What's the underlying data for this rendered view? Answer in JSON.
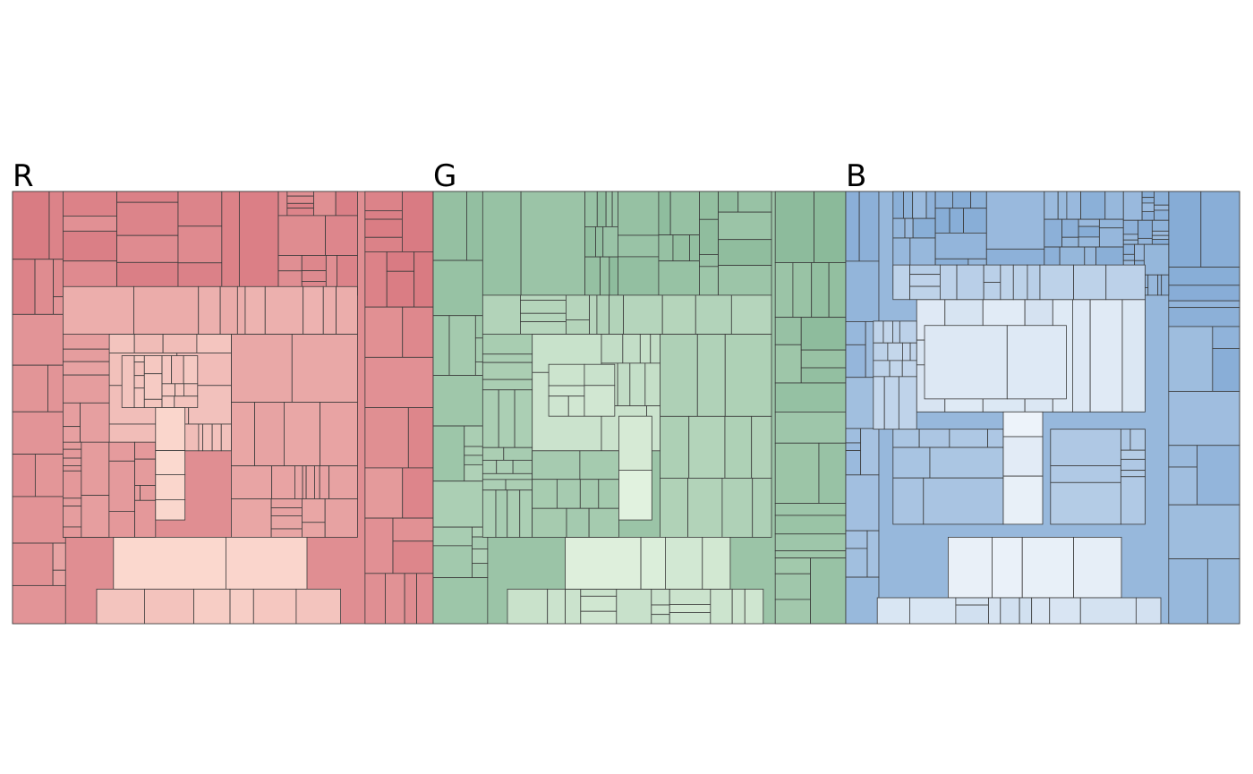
{
  "chart_data": [
    {
      "type": "treemap",
      "title": "R",
      "colors": {
        "dark": "#d87880",
        "light": "#ffe4d8"
      },
      "outer_columns": [
        {
          "weight": 1.05,
          "rows": [
            {
              "weight": 1.6,
              "cells": [
                1.8,
                0.8
              ]
            },
            {
              "weight": 1.3,
              "cells": [
                1.1,
                0.9,
                0.6
              ]
            },
            {
              "weight": 1.2,
              "cells": [
                1
              ]
            },
            {
              "weight": 1.1,
              "cells": [
                1.4,
                0.7
              ]
            },
            {
              "weight": 1.0,
              "cells": [
                1
              ]
            },
            {
              "weight": 1.0,
              "cells": [
                0.9,
                1.2
              ]
            },
            {
              "weight": 1.1,
              "cells": [
                1
              ]
            },
            {
              "weight": 1.0,
              "cells": [
                1.6,
                0.5
              ]
            },
            {
              "weight": 0.9,
              "cells": [
                1
              ]
            }
          ]
        },
        {
          "weight": 0.9,
          "rows": [
            {
              "weight": 1.2,
              "cells": [
                1.2,
                1.0
              ]
            },
            {
              "weight": 1.1,
              "cells": [
                0.8,
                1.0,
                0.7
              ]
            },
            {
              "weight": 1.0,
              "cells": [
                1.1,
                0.9
              ]
            },
            {
              "weight": 1.0,
              "cells": [
                1
              ]
            },
            {
              "weight": 1.2,
              "cells": [
                1.4,
                0.8
              ]
            },
            {
              "weight": 1.0,
              "cells": [
                1
              ]
            },
            {
              "weight": 1.1,
              "cells": [
                0.9,
                1.3
              ]
            },
            {
              "weight": 1.0,
              "cells": [
                1
              ]
            }
          ]
        }
      ],
      "center_blocks": [
        {
          "x0": 0.23,
          "y0": 0.33,
          "x1": 0.52,
          "y1": 0.6,
          "t": 0.72
        },
        {
          "x0": 0.26,
          "y0": 0.38,
          "x1": 0.44,
          "y1": 0.5,
          "t": 0.78
        },
        {
          "x0": 0.34,
          "y0": 0.5,
          "x1": 0.41,
          "y1": 0.76,
          "t": 0.95
        },
        {
          "x0": 0.24,
          "y0": 0.8,
          "x1": 0.7,
          "y1": 0.92,
          "t": 0.9
        },
        {
          "x0": 0.2,
          "y0": 0.92,
          "x1": 0.78,
          "y1": 1.0,
          "t": 0.8
        },
        {
          "x0": 0.12,
          "y0": 0.22,
          "x1": 0.82,
          "y1": 0.33,
          "t": 0.55
        },
        {
          "x0": 0.52,
          "y0": 0.33,
          "x1": 0.82,
          "y1": 0.8,
          "t": 0.45
        },
        {
          "x0": 0.12,
          "y0": 0.33,
          "x1": 0.23,
          "y1": 0.8,
          "t": 0.4
        },
        {
          "x0": 0.12,
          "y0": 0.58,
          "x1": 0.34,
          "y1": 0.8,
          "t": 0.35
        }
      ]
    },
    {
      "type": "treemap",
      "title": "G",
      "colors": {
        "dark": "#88b898",
        "light": "#e8f6e4"
      },
      "outer_columns": [
        {
          "weight": 1.1,
          "rows": [
            {
              "weight": 1.5,
              "cells": [
                1.6,
                1.0
              ]
            },
            {
              "weight": 1.2,
              "cells": [
                1
              ]
            },
            {
              "weight": 1.3,
              "cells": [
                0.8,
                1.3,
                0.6
              ]
            },
            {
              "weight": 1.1,
              "cells": [
                1
              ]
            },
            {
              "weight": 1.2,
              "cells": [
                1.2,
                0.9
              ]
            },
            {
              "weight": 1.0,
              "cells": [
                1
              ]
            },
            {
              "weight": 1.1,
              "cells": [
                1.5,
                0.6
              ]
            },
            {
              "weight": 1.0,
              "cells": [
                1
              ]
            }
          ]
        },
        {
          "weight": 0.95,
          "rows": [
            {
              "weight": 1.3,
              "cells": [
                1.1,
                0.9
              ]
            },
            {
              "weight": 1.0,
              "cells": [
                1
              ]
            },
            {
              "weight": 1.2,
              "cells": [
                0.7,
                1.2
              ]
            },
            {
              "weight": 1.1,
              "cells": [
                1
              ]
            },
            {
              "weight": 1.1,
              "cells": [
                1.3,
                0.8
              ]
            },
            {
              "weight": 1.0,
              "cells": [
                1
              ]
            },
            {
              "weight": 1.2,
              "cells": [
                1.0,
                1.0
              ]
            }
          ]
        }
      ],
      "center_blocks": [
        {
          "x0": 0.24,
          "y0": 0.33,
          "x1": 0.55,
          "y1": 0.6,
          "t": 0.7
        },
        {
          "x0": 0.28,
          "y0": 0.4,
          "x1": 0.44,
          "y1": 0.52,
          "t": 0.8
        },
        {
          "x0": 0.45,
          "y0": 0.52,
          "x1": 0.53,
          "y1": 0.76,
          "t": 0.95
        },
        {
          "x0": 0.32,
          "y0": 0.8,
          "x1": 0.72,
          "y1": 0.92,
          "t": 0.9
        },
        {
          "x0": 0.18,
          "y0": 0.92,
          "x1": 0.8,
          "y1": 1.0,
          "t": 0.78
        },
        {
          "x0": 0.12,
          "y0": 0.24,
          "x1": 0.82,
          "y1": 0.33,
          "t": 0.5
        },
        {
          "x0": 0.55,
          "y0": 0.33,
          "x1": 0.82,
          "y1": 0.8,
          "t": 0.45
        },
        {
          "x0": 0.12,
          "y0": 0.33,
          "x1": 0.24,
          "y1": 0.8,
          "t": 0.38
        },
        {
          "x0": 0.24,
          "y0": 0.6,
          "x1": 0.45,
          "y1": 0.8,
          "t": 0.33
        }
      ]
    },
    {
      "type": "treemap",
      "title": "B",
      "colors": {
        "dark": "#80a8d4",
        "light": "#f4f8fc"
      },
      "outer_columns": [
        {
          "weight": 0.7,
          "rows": [
            {
              "weight": 1.5,
              "cells": [
                0.9,
                1.3
              ]
            },
            {
              "weight": 1.3,
              "cells": [
                1
              ]
            },
            {
              "weight": 1.2,
              "cells": [
                1.2,
                0.8
              ]
            },
            {
              "weight": 1.1,
              "cells": [
                1
              ]
            },
            {
              "weight": 1.0,
              "cells": [
                0.9,
                1.1
              ]
            },
            {
              "weight": 1.2,
              "cells": [
                1
              ]
            },
            {
              "weight": 1.0,
              "cells": [
                1.3,
                0.7
              ]
            },
            {
              "weight": 1.0,
              "cells": [
                1
              ]
            }
          ]
        },
        {
          "weight": 1.0,
          "rows": [
            {
              "weight": 1.4,
              "cells": [
                1.0,
                1.2
              ]
            },
            {
              "weight": 1.1,
              "cells": [
                1
              ]
            },
            {
              "weight": 1.2,
              "cells": [
                1.3,
                0.8
              ]
            },
            {
              "weight": 1.0,
              "cells": [
                1
              ]
            },
            {
              "weight": 1.1,
              "cells": [
                0.8,
                1.2
              ]
            },
            {
              "weight": 1.0,
              "cells": [
                1
              ]
            },
            {
              "weight": 1.2,
              "cells": [
                1.1,
                0.9
              ]
            }
          ]
        }
      ],
      "center_blocks": [
        {
          "x0": 0.18,
          "y0": 0.25,
          "x1": 0.76,
          "y1": 0.51,
          "t": 0.85
        },
        {
          "x0": 0.2,
          "y0": 0.31,
          "x1": 0.56,
          "y1": 0.48,
          "t": 0.9
        },
        {
          "x0": 0.4,
          "y0": 0.51,
          "x1": 0.5,
          "y1": 0.77,
          "t": 0.97
        },
        {
          "x0": 0.26,
          "y0": 0.8,
          "x1": 0.7,
          "y1": 0.94,
          "t": 0.92
        },
        {
          "x0": 0.08,
          "y0": 0.94,
          "x1": 0.8,
          "y1": 1.0,
          "t": 0.8
        },
        {
          "x0": 0.12,
          "y0": 0.17,
          "x1": 0.76,
          "y1": 0.25,
          "t": 0.55
        },
        {
          "x0": 0.52,
          "y0": 0.55,
          "x1": 0.76,
          "y1": 0.77,
          "t": 0.45
        },
        {
          "x0": 0.12,
          "y0": 0.55,
          "x1": 0.4,
          "y1": 0.77,
          "t": 0.4
        },
        {
          "x0": 0.07,
          "y0": 0.3,
          "x1": 0.18,
          "y1": 0.55,
          "t": 0.6
        }
      ]
    }
  ]
}
